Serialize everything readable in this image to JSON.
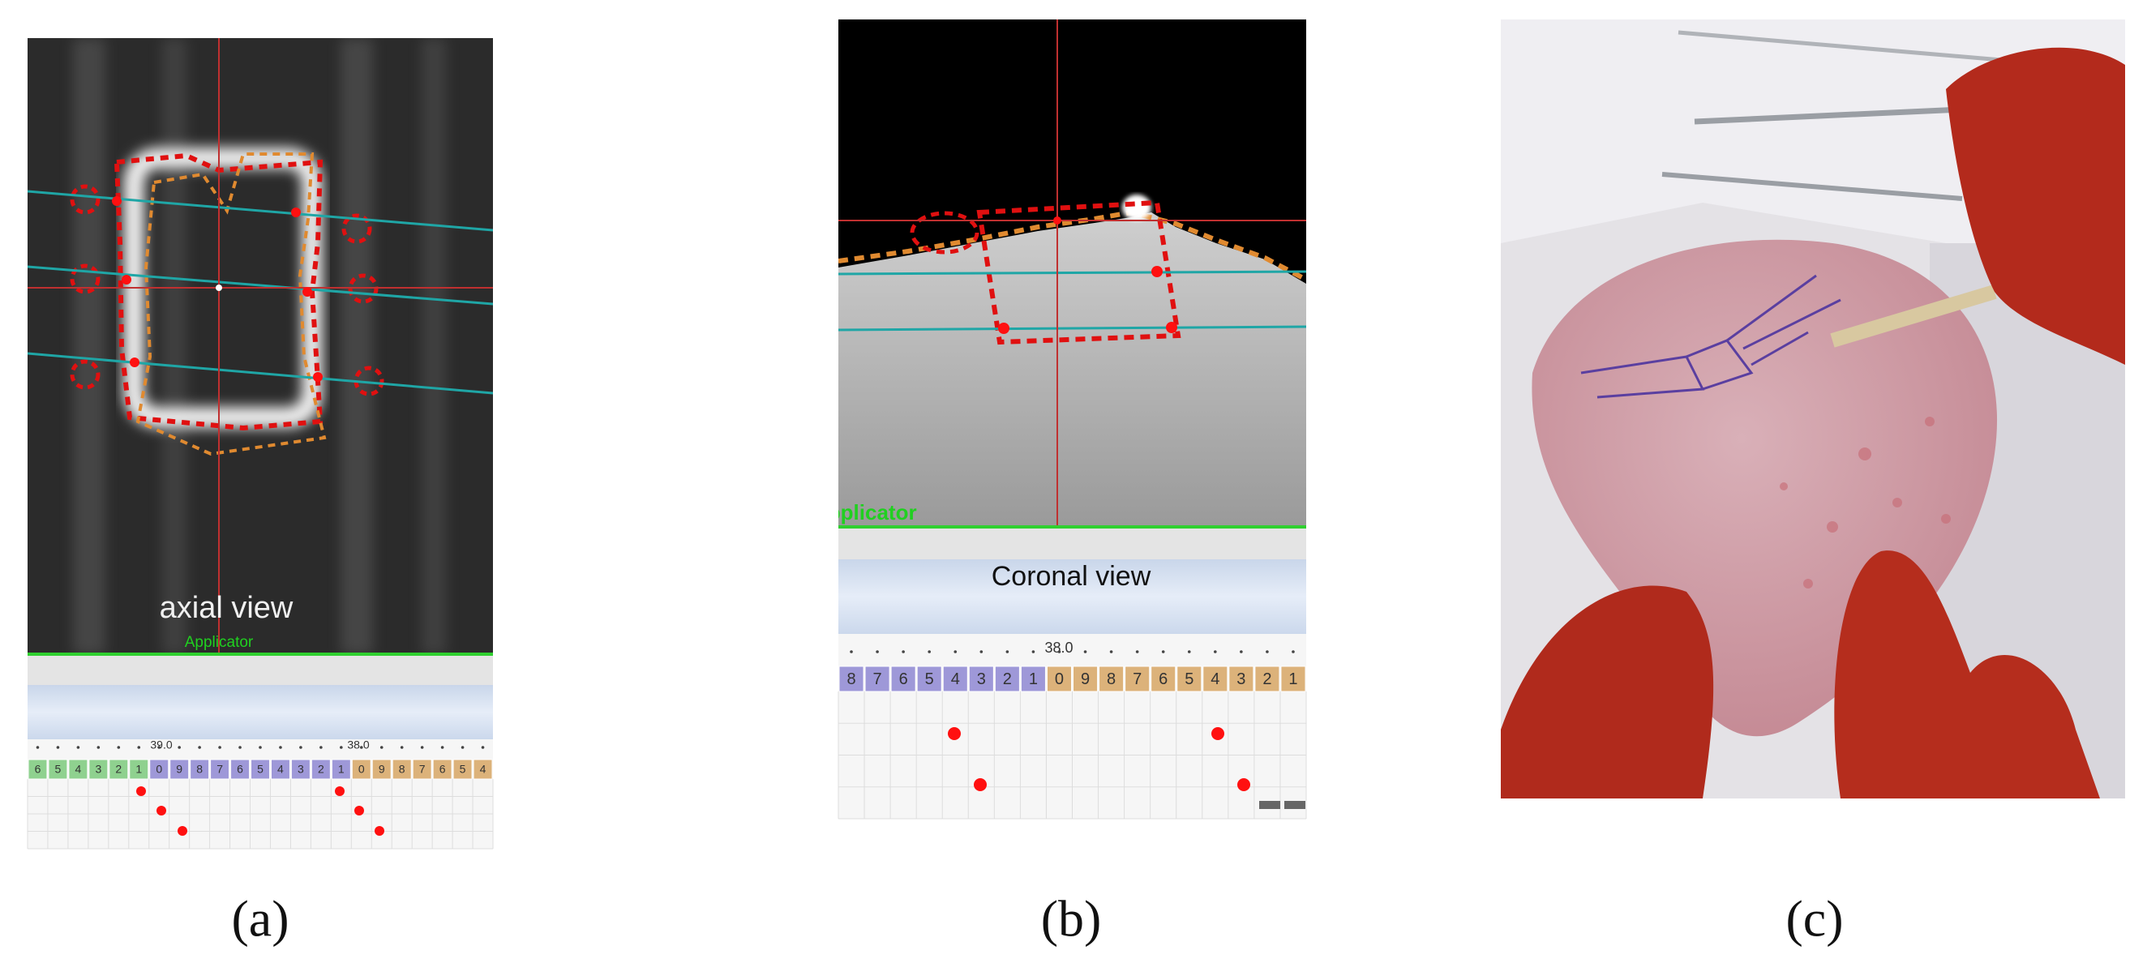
{
  "panels": [
    {
      "label": "(a)",
      "view_caption": "axial view",
      "applicator": "Applicator",
      "ruler_marks": [
        "39.0",
        "38.0"
      ],
      "cell_groups": [
        {
          "digits": [
            "6",
            "5",
            "4",
            "3",
            "2",
            "1"
          ]
        },
        {
          "digits": [
            "0",
            "9",
            "8",
            "7",
            "6",
            "5",
            "4",
            "3",
            "2",
            "1"
          ]
        },
        {
          "digits": [
            "0",
            "9",
            "8",
            "7",
            "6",
            "5",
            "4"
          ]
        }
      ]
    },
    {
      "label": "(b)",
      "view_caption": "Coronal view",
      "applicator": "Applicator",
      "ruler_marks": [
        "38.0"
      ],
      "cell_groups": [
        {
          "digits": [
            "8",
            "7",
            "6",
            "5",
            "4",
            "3",
            "2",
            "1"
          ]
        },
        {
          "digits": [
            "0",
            "9",
            "8",
            "7",
            "6",
            "5",
            "4",
            "3",
            "2",
            "1"
          ]
        }
      ]
    },
    {
      "label": "(c)"
    }
  ]
}
